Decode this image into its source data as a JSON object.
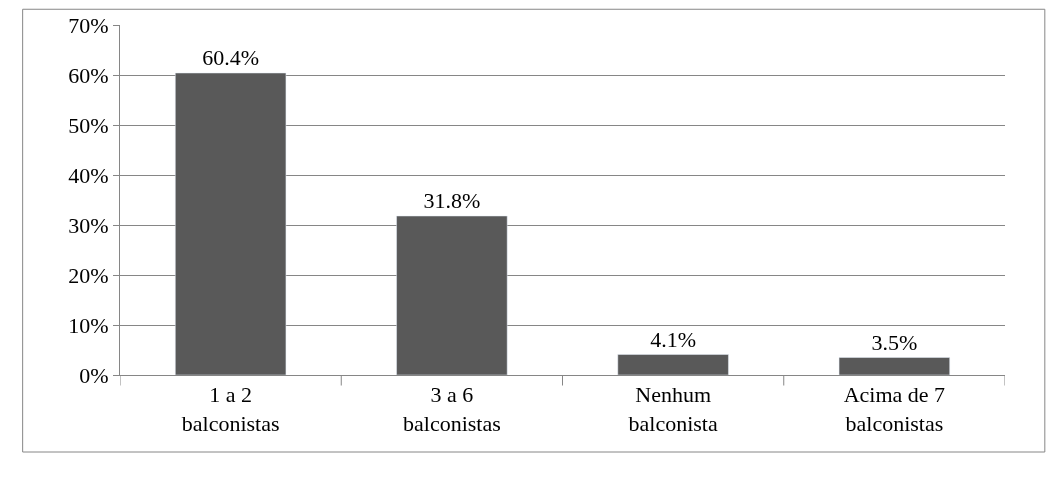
{
  "chart_data": {
    "type": "bar",
    "categories": [
      "1 a 2 balconistas",
      "3 a 6 balconistas",
      "Nenhum balconista",
      "Acima de 7 balconistas"
    ],
    "values": [
      60.4,
      31.8,
      4.1,
      3.5
    ],
    "value_labels": [
      "60.4%",
      "31.8%",
      "4.1%",
      "3.5%"
    ],
    "color": "#595959",
    "ylim": [
      0,
      70
    ],
    "yticks": [
      {
        "value": 0,
        "label": "0%"
      },
      {
        "value": 10,
        "label": "10%"
      },
      {
        "value": 20,
        "label": "20%"
      },
      {
        "value": 30,
        "label": "30%"
      },
      {
        "value": 40,
        "label": "40%"
      },
      {
        "value": 50,
        "label": "50%"
      },
      {
        "value": 60,
        "label": "60%"
      },
      {
        "value": 70,
        "label": "70%"
      }
    ],
    "grid": "y",
    "legend": false
  }
}
